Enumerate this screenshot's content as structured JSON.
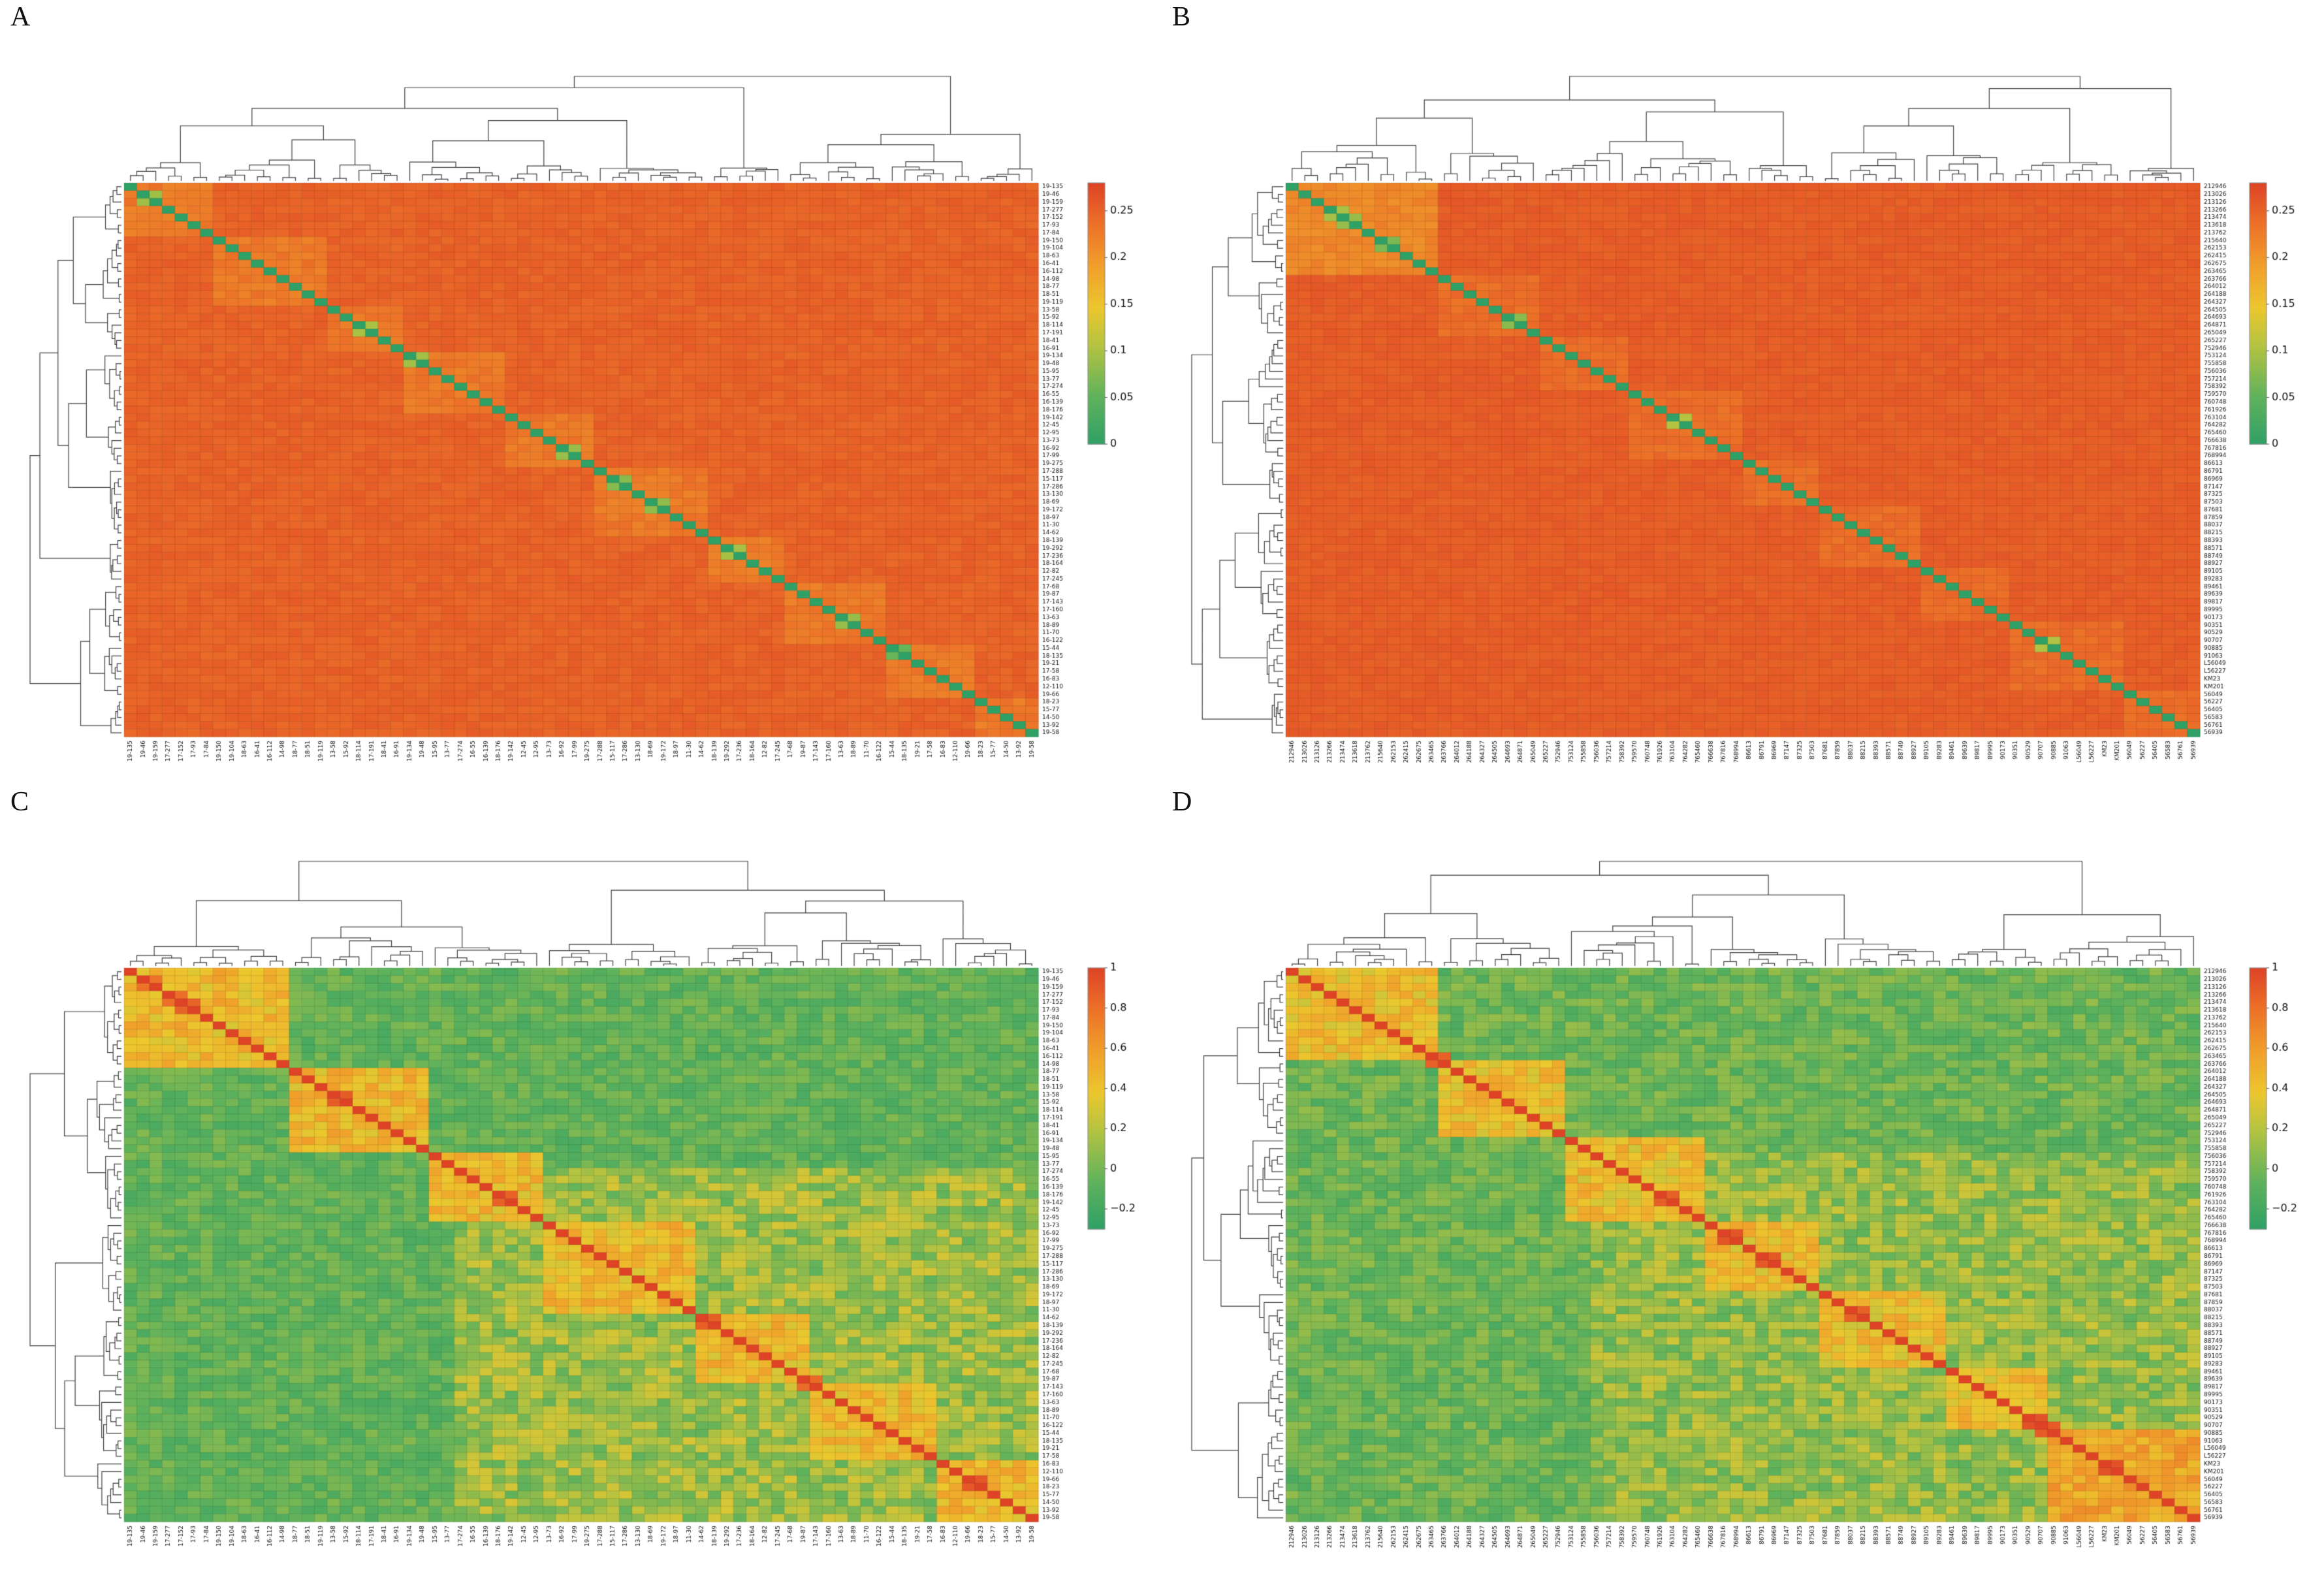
{
  "figure": {
    "background": "#ffffff",
    "panels": [
      {
        "label": "A"
      },
      {
        "label": "B"
      },
      {
        "label": "C"
      },
      {
        "label": "D"
      }
    ]
  },
  "colormap_stops": [
    {
      "t": 0.0,
      "color": "#2fa066"
    },
    {
      "t": 0.18,
      "color": "#5fb25c"
    },
    {
      "t": 0.38,
      "color": "#b5c341"
    },
    {
      "t": 0.52,
      "color": "#ecc72e"
    },
    {
      "t": 0.68,
      "color": "#f0a02b"
    },
    {
      "t": 0.85,
      "color": "#ec6f28"
    },
    {
      "t": 1.0,
      "color": "#de4326"
    }
  ],
  "sample_labels_set1": [
    "19-135",
    "19-46",
    "19-159",
    "17-277",
    "17-152",
    "17-93",
    "17-84",
    "19-150",
    "19-104",
    "18-63",
    "16-41",
    "16-112",
    "14-98",
    "18-77",
    "18-51",
    "19-119",
    "13-58",
    "15-92",
    "18-114",
    "17-191",
    "18-41",
    "16-91",
    "19-134",
    "19-48",
    "15-95",
    "13-77",
    "17-274",
    "16-55",
    "16-139",
    "18-176",
    "19-142",
    "12-45",
    "12-95",
    "13-73",
    "16-92",
    "17-99",
    "19-275",
    "17-288",
    "15-117",
    "17-286",
    "13-130",
    "18-69",
    "19-172",
    "18-97",
    "11-30",
    "14-62",
    "18-139",
    "19-292",
    "17-236",
    "18-164",
    "12-82",
    "17-245",
    "17-68",
    "19-87",
    "17-143",
    "17-160",
    "13-63",
    "18-89",
    "11-70",
    "16-122",
    "15-44",
    "18-135",
    "19-21",
    "17-58",
    "16-83",
    "12-110",
    "19-66",
    "18-23",
    "15-77",
    "14-50",
    "13-92",
    "19-58"
  ],
  "sample_labels_set2": [
    "212946",
    "213026",
    "213126",
    "213266",
    "213474",
    "213618",
    "213762",
    "215640",
    "262153",
    "262415",
    "262675",
    "263465",
    "263766",
    "264012",
    "264188",
    "264327",
    "264505",
    "264693",
    "264871",
    "265049",
    "265227",
    "752946",
    "753124",
    "755858",
    "756036",
    "757214",
    "758392",
    "759570",
    "760748",
    "761926",
    "763104",
    "764282",
    "765460",
    "766638",
    "767816",
    "768994",
    "86613",
    "86791",
    "86969",
    "87147",
    "87325",
    "87503",
    "87681",
    "87859",
    "88037",
    "88215",
    "88393",
    "88571",
    "88749",
    "88927",
    "89105",
    "89283",
    "89461",
    "89639",
    "89817",
    "89995",
    "90173",
    "90351",
    "90529",
    "90707",
    "90885",
    "91063",
    "L56049",
    "L56227",
    "KM23",
    "KM201",
    "56049",
    "56227",
    "56405",
    "56583",
    "56761",
    "56939"
  ],
  "chart_data": [
    {
      "panel": "A",
      "type": "heatmap",
      "matrix": "pairwise-distance",
      "n": 72,
      "labels_ref": "sample_labels_set1",
      "dendrograms": [
        "top",
        "left"
      ],
      "legend_position": "right",
      "value_range": [
        0,
        0.28
      ],
      "diagonal_value": 0,
      "base_in": 0.228,
      "base_out": 0.25,
      "jitter_in": 0.02,
      "jitter_out": 0.014,
      "cluster_sizes": [
        7,
        9,
        6,
        8,
        7,
        9,
        6,
        8,
        7,
        5
      ],
      "block_overrides": [],
      "adjacent_pairs": 9,
      "adjacent_value": 0.07,
      "adjacent_jitter": 0.06,
      "colorbar_tick_labels": [
        "0.25",
        "0.2",
        "0.15",
        "0.1",
        "0.05",
        "0"
      ],
      "colorbar_tick_values": [
        0.25,
        0.2,
        0.15,
        0.1,
        0.05,
        0
      ],
      "seed": 101
    },
    {
      "panel": "B",
      "type": "heatmap",
      "matrix": "pairwise-distance",
      "n": 72,
      "labels_ref": "sample_labels_set2",
      "dendrograms": [
        "top",
        "left"
      ],
      "legend_position": "right",
      "value_range": [
        0,
        0.28
      ],
      "diagonal_value": 0,
      "base_in": 0.24,
      "base_out": 0.255,
      "jitter_in": 0.016,
      "jitter_out": 0.012,
      "cluster_sizes": [
        12,
        8,
        7,
        9,
        6,
        8,
        7,
        9,
        6
      ],
      "block_overrides": [
        {
          "start": 0,
          "size": 12,
          "value": 0.215,
          "jitter": 0.02,
          "phase": "post"
        }
      ],
      "adjacent_pairs": 6,
      "adjacent_value": 0.09,
      "adjacent_jitter": 0.05,
      "colorbar_tick_labels": [
        "0.25",
        "0.2",
        "0.15",
        "0.1",
        "0.05",
        "0"
      ],
      "colorbar_tick_values": [
        0.25,
        0.2,
        0.15,
        0.1,
        0.05,
        0
      ],
      "seed": 202
    },
    {
      "panel": "C",
      "type": "heatmap",
      "matrix": "correlation",
      "n": 72,
      "labels_ref": "sample_labels_set1",
      "dendrograms": [
        "top",
        "left"
      ],
      "legend_position": "right",
      "value_range": [
        -0.3,
        1
      ],
      "diagonal_value": 1,
      "base_in": 0.45,
      "base_out": -0.06,
      "jitter_in": 0.3,
      "jitter_out": 0.22,
      "cluster_sizes": [
        13,
        11,
        9,
        12,
        9,
        10,
        8
      ],
      "block_overrides": [
        {
          "start": 26,
          "size": 46,
          "value": 0.12,
          "jitter": 0.38,
          "phase": "pre"
        }
      ],
      "adjacent_pairs": 10,
      "adjacent_value": 0.85,
      "adjacent_jitter": 0.12,
      "colorbar_tick_labels": [
        "1",
        "0.8",
        "0.6",
        "0.4",
        "0.2",
        "0",
        "−0.2"
      ],
      "colorbar_tick_values": [
        1,
        0.8,
        0.6,
        0.4,
        0.2,
        0,
        -0.2
      ],
      "seed": 303
    },
    {
      "panel": "D",
      "type": "heatmap",
      "matrix": "correlation",
      "n": 72,
      "labels_ref": "sample_labels_set2",
      "dendrograms": [
        "top",
        "left"
      ],
      "legend_position": "right",
      "value_range": [
        -0.3,
        1
      ],
      "diagonal_value": 1,
      "base_in": 0.42,
      "base_out": -0.03,
      "jitter_in": 0.3,
      "jitter_out": 0.26,
      "cluster_sizes": [
        12,
        10,
        11,
        9,
        10,
        8,
        12
      ],
      "block_overrides": [
        {
          "start": 24,
          "size": 48,
          "value": 0.1,
          "jitter": 0.36,
          "phase": "pre"
        },
        {
          "start": 60,
          "size": 12,
          "value": 0.55,
          "jitter": 0.25,
          "phase": "post"
        }
      ],
      "adjacent_pairs": 8,
      "adjacent_value": 0.9,
      "adjacent_jitter": 0.1,
      "colorbar_tick_labels": [
        "1",
        "0.8",
        "0.6",
        "0.4",
        "0.2",
        "0",
        "−0.2"
      ],
      "colorbar_tick_values": [
        1,
        0.8,
        0.6,
        0.4,
        0.2,
        0,
        -0.2
      ],
      "seed": 404
    }
  ]
}
